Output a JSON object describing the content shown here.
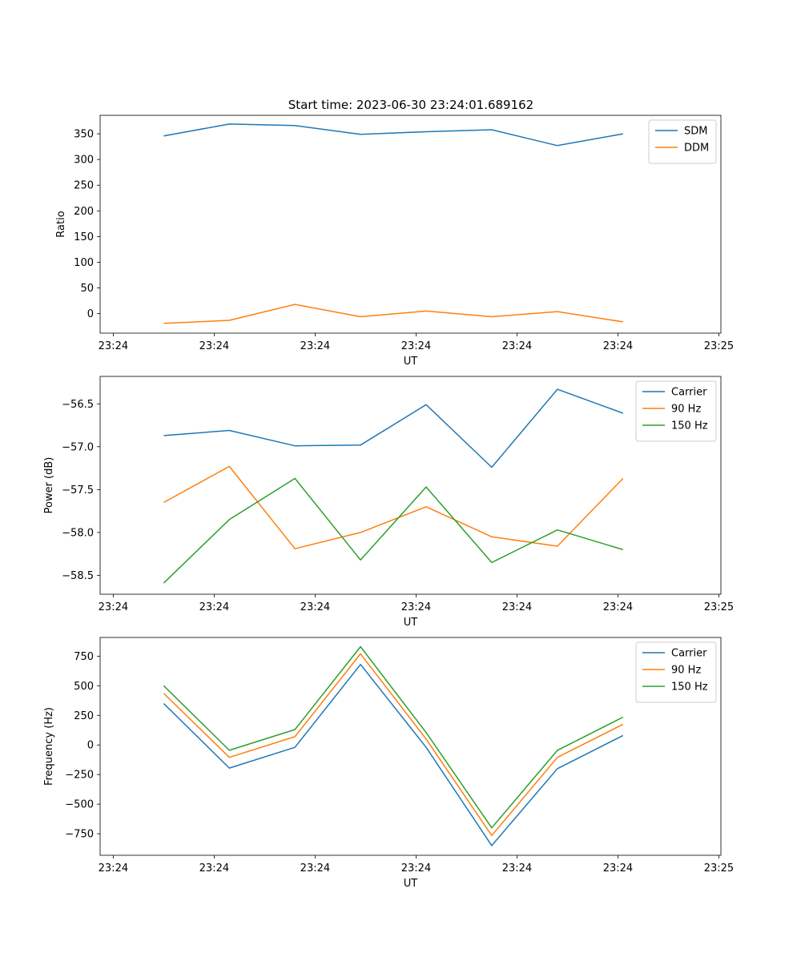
{
  "figure": {
    "title": "Start time: 2023-06-30 23:24:01.689162"
  },
  "colors": {
    "blue": "#1f77b4",
    "orange": "#ff7f0e",
    "green": "#2ca02c"
  },
  "chart_data": [
    {
      "type": "line",
      "title": "Start time: 2023-06-30 23:24:01.689162",
      "xlabel": "UT",
      "ylabel": "Ratio",
      "x_ticks": [
        "23:24",
        "23:24",
        "23:24",
        "23:24",
        "23:24",
        "23:24",
        "23:25"
      ],
      "y_ticks": [
        0,
        50,
        100,
        150,
        200,
        250,
        300,
        350
      ],
      "ylim": [
        -38,
        386
      ],
      "grid": false,
      "legend": "top-right",
      "x_index": [
        0.5,
        1.15,
        1.8,
        2.45,
        3.1,
        3.75,
        4.4,
        5.05
      ],
      "series": [
        {
          "name": "SDM",
          "color": "#1f77b4",
          "values": [
            346,
            369,
            366,
            349,
            354,
            358,
            327,
            350
          ]
        },
        {
          "name": "DDM",
          "color": "#ff7f0e",
          "values": [
            -19,
            -13,
            18,
            -6,
            5,
            -6,
            4,
            -16
          ]
        }
      ]
    },
    {
      "type": "line",
      "xlabel": "UT",
      "ylabel": "Power (dB)",
      "x_ticks": [
        "23:24",
        "23:24",
        "23:24",
        "23:24",
        "23:24",
        "23:24",
        "23:25"
      ],
      "y_ticks": [
        -58.5,
        -58.0,
        -57.5,
        -57.0,
        -56.5
      ],
      "y_tick_labels": [
        "−58.5",
        "−58.0",
        "−57.5",
        "−57.0",
        "−56.5"
      ],
      "ylim": [
        -58.72,
        -56.18
      ],
      "grid": false,
      "legend": "top-right",
      "x_index": [
        0.5,
        1.15,
        1.8,
        2.45,
        3.1,
        3.75,
        4.4,
        5.05
      ],
      "series": [
        {
          "name": "Carrier",
          "color": "#1f77b4",
          "values": [
            -56.87,
            -56.81,
            -56.99,
            -56.98,
            -56.51,
            -57.24,
            -56.33,
            -56.61
          ]
        },
        {
          "name": "90 Hz",
          "color": "#ff7f0e",
          "values": [
            -57.65,
            -57.23,
            -58.19,
            -58.0,
            -57.7,
            -58.05,
            -58.16,
            -57.37
          ]
        },
        {
          "name": "150 Hz",
          "color": "#2ca02c",
          "values": [
            -58.59,
            -57.85,
            -57.37,
            -58.32,
            -57.47,
            -58.35,
            -57.97,
            -58.2
          ]
        }
      ]
    },
    {
      "type": "line",
      "xlabel": "UT",
      "ylabel": "Frequency (Hz)",
      "x_ticks": [
        "23:24",
        "23:24",
        "23:24",
        "23:24",
        "23:24",
        "23:24",
        "23:25"
      ],
      "y_ticks": [
        -750,
        -500,
        -250,
        0,
        250,
        500,
        750
      ],
      "y_tick_labels": [
        "−750",
        "−500",
        "−250",
        "0",
        "250",
        "500",
        "750"
      ],
      "ylim": [
        -932,
        908
      ],
      "grid": false,
      "legend": "top-right",
      "x_index": [
        0.5,
        1.15,
        1.8,
        2.45,
        3.1,
        3.75,
        4.4,
        5.05
      ],
      "series": [
        {
          "name": "Carrier",
          "color": "#1f77b4",
          "values": [
            350,
            -195,
            -20,
            680,
            -20,
            -850,
            -200,
            80
          ]
        },
        {
          "name": "90 Hz",
          "color": "#ff7f0e",
          "values": [
            435,
            -105,
            70,
            770,
            50,
            -765,
            -105,
            175
          ]
        },
        {
          "name": "150 Hz",
          "color": "#2ca02c",
          "values": [
            500,
            -45,
            130,
            830,
            105,
            -700,
            -45,
            235
          ]
        }
      ]
    }
  ]
}
